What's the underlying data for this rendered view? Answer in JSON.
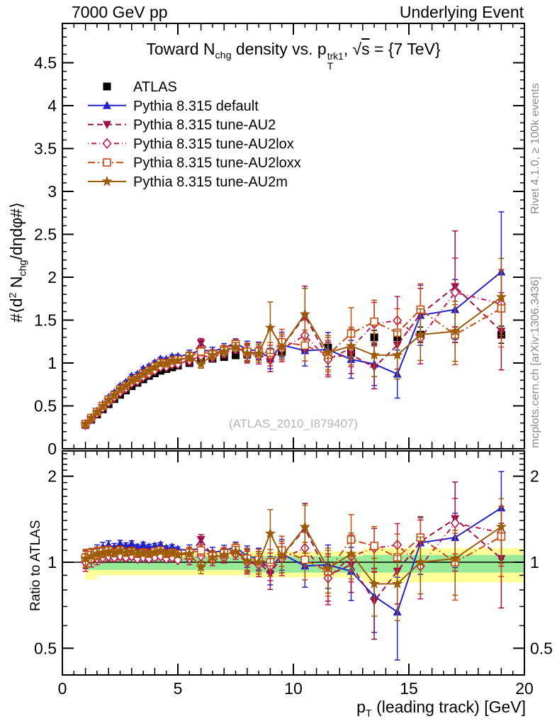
{
  "header": {
    "left": "7000 GeV pp",
    "right": "Underlying Event"
  },
  "title": {
    "t1": "Toward N",
    "sub1": "chg",
    "t2": " density vs. p",
    "sup2": "trk1",
    "sub2": "T",
    "t3": ", ",
    "sqrt": "√",
    "s": "s",
    "t4": " = {7 TeV}"
  },
  "ylabel_parts": {
    "t1": "#⟨d",
    "sup1": "2",
    "t2": " N",
    "sub2": "chg",
    "t3": "/dηdφ#⟩"
  },
  "xlabel_parts": {
    "t1": "p",
    "sub1": "T",
    "t2": " (leading track) [GeV]"
  },
  "ratio_label": "Ratio to ATLAS",
  "watermark": "(ATLAS_2010_I879407)",
  "side_notes": {
    "top_right": "Rivet 4.1.0, ≥ 100k events",
    "bottom_right": "mcplots.cern.ch [arXiv:1306.3436]"
  },
  "chart_data": {
    "type": "scatter",
    "title": "Toward Nchg density vs. pT trk1, sqrt(s) = {7 TeV}",
    "xlabel": "pT (leading track) [GeV]",
    "ylabel": "#<d2 Nchg/detadphi#>",
    "ratio_ylabel": "Ratio to ATLAS",
    "xlim": [
      0,
      20
    ],
    "ylim_main": [
      0,
      4.95
    ],
    "ylim_ratio": [
      0.4,
      2.47
    ],
    "ratio_log": true,
    "x_ticks": [
      0,
      5,
      10,
      15,
      20
    ],
    "y_ticks_main": [
      0,
      0.5,
      1,
      1.5,
      2,
      2.5,
      3,
      3.5,
      4,
      4.5
    ],
    "y_ticks_ratio": [
      0.5,
      1,
      2
    ],
    "x": [
      1.0,
      1.25,
      1.5,
      1.75,
      2.0,
      2.25,
      2.5,
      2.75,
      3.0,
      3.25,
      3.5,
      3.75,
      4.0,
      4.25,
      4.5,
      4.75,
      5.0,
      5.5,
      6.0,
      6.5,
      7.0,
      7.5,
      8.0,
      8.5,
      9.0,
      9.5,
      10.5,
      11.5,
      12.5,
      13.5,
      14.5,
      15.5,
      17.0,
      19.0
    ],
    "series": [
      {
        "name": "ATLAS",
        "color": "#000000",
        "marker": "square-filled",
        "line": "none",
        "values": [
          0.28,
          0.34,
          0.4,
          0.46,
          0.52,
          0.58,
          0.63,
          0.68,
          0.73,
          0.77,
          0.81,
          0.85,
          0.88,
          0.91,
          0.93,
          0.95,
          0.97,
          1.0,
          1.03,
          1.05,
          1.07,
          1.09,
          1.1,
          1.11,
          1.12,
          1.13,
          1.18,
          1.18,
          1.12,
          1.3,
          1.3,
          1.33,
          1.33,
          1.33
        ],
        "errors": [
          0.01,
          0.01,
          0.01,
          0.01,
          0.01,
          0.01,
          0.01,
          0.01,
          0.02,
          0.02,
          0.02,
          0.02,
          0.02,
          0.02,
          0.02,
          0.02,
          0.02,
          0.02,
          0.03,
          0.03,
          0.03,
          0.03,
          0.04,
          0.04,
          0.04,
          0.05,
          0.05,
          0.06,
          0.06,
          0.08,
          0.08,
          0.09,
          0.09,
          0.1
        ]
      },
      {
        "name": "Pythia 8.315 default",
        "color": "#2222cc",
        "marker": "triangle-up",
        "line": "solid",
        "values": [
          0.288,
          0.36,
          0.44,
          0.52,
          0.598,
          0.655,
          0.731,
          0.775,
          0.847,
          0.87,
          0.932,
          0.961,
          1.003,
          1.047,
          1.042,
          1.074,
          1.077,
          1.1,
          1.154,
          1.134,
          1.177,
          1.232,
          1.155,
          1.143,
          1.053,
          1.209,
          1.145,
          1.156,
          1.042,
          0.988,
          0.871,
          1.556,
          1.623,
          2.062
        ],
        "errors": [
          0.02,
          0.02,
          0.02,
          0.02,
          0.02,
          0.02,
          0.02,
          0.02,
          0.02,
          0.02,
          0.02,
          0.02,
          0.02,
          0.02,
          0.02,
          0.02,
          0.02,
          0.05,
          0.05,
          0.05,
          0.05,
          0.05,
          0.1,
          0.1,
          0.12,
          0.15,
          0.18,
          0.2,
          0.22,
          0.25,
          0.28,
          0.35,
          0.35,
          0.7
        ]
      },
      {
        "name": "Pythia 8.315 tune-AU2",
        "color": "#9e0d48",
        "marker": "triangle-down",
        "line": "dashed",
        "values": [
          0.286,
          0.357,
          0.428,
          0.501,
          0.572,
          0.632,
          0.699,
          0.741,
          0.803,
          0.832,
          0.883,
          0.918,
          0.959,
          1.001,
          1.004,
          1.026,
          1.038,
          1.06,
          1.236,
          1.103,
          1.145,
          1.199,
          1.122,
          1.11,
          1.019,
          1.187,
          1.546,
          1.062,
          1.098,
          0.949,
          1.209,
          1.569,
          1.889,
          1.37
        ],
        "errors": [
          0.02,
          0.02,
          0.02,
          0.02,
          0.02,
          0.02,
          0.02,
          0.02,
          0.02,
          0.02,
          0.02,
          0.02,
          0.02,
          0.02,
          0.02,
          0.02,
          0.02,
          0.05,
          0.05,
          0.05,
          0.05,
          0.05,
          0.1,
          0.1,
          0.12,
          0.15,
          0.35,
          0.2,
          0.22,
          0.25,
          0.28,
          0.3,
          0.65,
          0.45
        ]
      },
      {
        "name": "Pythia 8.315 tune-AU2lox",
        "color": "#c2184f",
        "marker": "diamond-open",
        "line": "dashdot",
        "values": [
          0.28,
          0.347,
          0.412,
          0.478,
          0.546,
          0.603,
          0.662,
          0.707,
          0.767,
          0.793,
          0.842,
          0.876,
          0.915,
          0.956,
          0.958,
          0.988,
          0.989,
          1.03,
          1.082,
          1.071,
          1.113,
          1.166,
          1.1,
          1.088,
          1.086,
          1.164,
          1.322,
          1.038,
          1.176,
          1.456,
          1.495,
          1.29,
          1.822,
          1.689
        ],
        "errors": [
          0.02,
          0.02,
          0.02,
          0.02,
          0.02,
          0.02,
          0.02,
          0.02,
          0.02,
          0.02,
          0.02,
          0.02,
          0.02,
          0.02,
          0.02,
          0.02,
          0.02,
          0.05,
          0.05,
          0.05,
          0.05,
          0.05,
          0.1,
          0.1,
          0.12,
          0.15,
          0.18,
          0.2,
          0.22,
          0.25,
          0.28,
          0.3,
          0.4,
          0.4
        ]
      },
      {
        "name": "Pythia 8.315 tune-AU2loxx",
        "color": "#c84b11",
        "marker": "square-open",
        "line": "dashdot2",
        "values": [
          0.291,
          0.36,
          0.432,
          0.501,
          0.572,
          0.626,
          0.693,
          0.734,
          0.796,
          0.824,
          0.875,
          0.91,
          0.959,
          1.001,
          0.995,
          1.026,
          1.038,
          1.08,
          1.133,
          1.103,
          1.156,
          1.221,
          1.133,
          1.132,
          1.12,
          1.243,
          1.204,
          1.097,
          1.344,
          1.482,
          1.352,
          1.623,
          1.33,
          1.636
        ],
        "errors": [
          0.02,
          0.02,
          0.02,
          0.02,
          0.02,
          0.02,
          0.02,
          0.02,
          0.02,
          0.02,
          0.02,
          0.02,
          0.02,
          0.02,
          0.02,
          0.02,
          0.02,
          0.05,
          0.05,
          0.05,
          0.05,
          0.05,
          0.1,
          0.1,
          0.12,
          0.15,
          0.18,
          0.2,
          0.3,
          0.25,
          0.28,
          0.3,
          0.35,
          0.45
        ]
      },
      {
        "name": "Pythia 8.315 tune-AU2m",
        "color": "#9c5c0a",
        "marker": "star-filled",
        "line": "solid",
        "values": [
          0.288,
          0.357,
          0.428,
          0.497,
          0.567,
          0.626,
          0.693,
          0.734,
          0.796,
          0.824,
          0.875,
          0.91,
          0.95,
          0.992,
          0.995,
          1.026,
          1.028,
          1.07,
          0.989,
          1.092,
          1.134,
          1.188,
          1.111,
          1.11,
          1.411,
          1.187,
          1.569,
          1.121,
          1.198,
          1.092,
          1.092,
          1.33,
          1.37,
          1.769
        ],
        "errors": [
          0.02,
          0.02,
          0.02,
          0.02,
          0.02,
          0.02,
          0.02,
          0.02,
          0.02,
          0.02,
          0.02,
          0.02,
          0.02,
          0.02,
          0.02,
          0.02,
          0.02,
          0.05,
          0.05,
          0.05,
          0.05,
          0.05,
          0.1,
          0.1,
          0.3,
          0.15,
          0.3,
          0.2,
          0.22,
          0.25,
          0.28,
          0.3,
          0.35,
          0.45
        ]
      }
    ],
    "bands": {
      "yellow_color": "#ffff99",
      "green_color": "#97e897",
      "yellow": [
        [
          1.0,
          1.5,
          0.87,
          1.09
        ],
        [
          1.5,
          8.0,
          0.9,
          1.085
        ],
        [
          8.0,
          13.0,
          0.885,
          1.09
        ],
        [
          13.0,
          20.0,
          0.85,
          1.12
        ]
      ],
      "green": [
        [
          1.0,
          8.0,
          0.94,
          1.045
        ],
        [
          8.0,
          13.0,
          0.92,
          1.05
        ],
        [
          13.0,
          20.0,
          0.92,
          1.06
        ]
      ]
    },
    "legend_position": "top-left",
    "grid": false
  }
}
